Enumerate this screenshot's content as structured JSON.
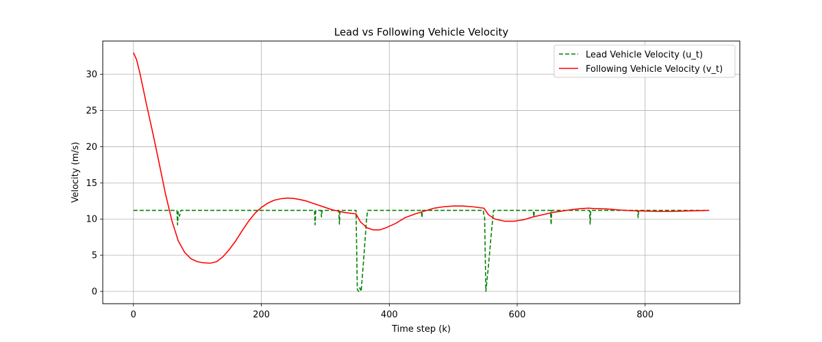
{
  "chart_data": {
    "type": "line",
    "title": "Lead vs Following Vehicle Velocity",
    "xlabel": "Time step (k)",
    "ylabel": "Velocity (m/s)",
    "xlim": [
      -48,
      948
    ],
    "ylim": [
      -1.7,
      34.6
    ],
    "xticks": [
      0,
      200,
      400,
      600,
      800
    ],
    "yticks": [
      0,
      5,
      10,
      15,
      20,
      25,
      30
    ],
    "grid": true,
    "legend_position": "top-right",
    "colors": {
      "lead": "#008000",
      "following": "#ff0000",
      "grid": "#b0b0b0"
    },
    "series": [
      {
        "name": "Lead Vehicle Velocity (u_t)",
        "style": "dashed",
        "color": "#008000",
        "points": [
          [
            0,
            11.2
          ],
          [
            68,
            11.2
          ],
          [
            69,
            9.2
          ],
          [
            70,
            11.0
          ],
          [
            72,
            10.4
          ],
          [
            74,
            11.2
          ],
          [
            283,
            11.2
          ],
          [
            284,
            9.2
          ],
          [
            285,
            11.2
          ],
          [
            293,
            11.2
          ],
          [
            294,
            10.3
          ],
          [
            295,
            11.2
          ],
          [
            321,
            11.2
          ],
          [
            322,
            9.3
          ],
          [
            323,
            11.2
          ],
          [
            348,
            11.2
          ],
          [
            350,
            0.3
          ],
          [
            352,
            0.0
          ],
          [
            354,
            0.5
          ],
          [
            356,
            0.0
          ],
          [
            360,
            4.5
          ],
          [
            364,
            9.5
          ],
          [
            366,
            11.2
          ],
          [
            450,
            11.2
          ],
          [
            451,
            10.2
          ],
          [
            452,
            11.2
          ],
          [
            547,
            11.2
          ],
          [
            548,
            10.4
          ],
          [
            549,
            10.3
          ],
          [
            551,
            0.0
          ],
          [
            555,
            3.5
          ],
          [
            560,
            8.5
          ],
          [
            563,
            11.2
          ],
          [
            625,
            11.2
          ],
          [
            626,
            10.3
          ],
          [
            627,
            11.2
          ],
          [
            652,
            11.2
          ],
          [
            653,
            9.2
          ],
          [
            654,
            11.2
          ],
          [
            713,
            11.2
          ],
          [
            714,
            9.3
          ],
          [
            715,
            11.2
          ],
          [
            788,
            11.2
          ],
          [
            789,
            10.2
          ],
          [
            790,
            11.2
          ],
          [
            900,
            11.2
          ]
        ]
      },
      {
        "name": "Following Vehicle Velocity (v_t)",
        "style": "solid",
        "color": "#ff0000",
        "points": [
          [
            0,
            33.0
          ],
          [
            5,
            32.0
          ],
          [
            10,
            30.2
          ],
          [
            20,
            26.0
          ],
          [
            30,
            22.0
          ],
          [
            40,
            17.8
          ],
          [
            50,
            13.5
          ],
          [
            60,
            9.8
          ],
          [
            70,
            7.0
          ],
          [
            80,
            5.4
          ],
          [
            90,
            4.5
          ],
          [
            100,
            4.1
          ],
          [
            110,
            3.95
          ],
          [
            120,
            3.9
          ],
          [
            130,
            4.1
          ],
          [
            140,
            4.8
          ],
          [
            150,
            5.8
          ],
          [
            160,
            7.0
          ],
          [
            170,
            8.4
          ],
          [
            180,
            9.7
          ],
          [
            190,
            10.8
          ],
          [
            200,
            11.6
          ],
          [
            210,
            12.2
          ],
          [
            220,
            12.6
          ],
          [
            230,
            12.8
          ],
          [
            240,
            12.9
          ],
          [
            250,
            12.85
          ],
          [
            260,
            12.7
          ],
          [
            270,
            12.5
          ],
          [
            280,
            12.2
          ],
          [
            290,
            11.9
          ],
          [
            300,
            11.6
          ],
          [
            310,
            11.3
          ],
          [
            320,
            11.1
          ],
          [
            330,
            10.9
          ],
          [
            340,
            10.8
          ],
          [
            348,
            10.7
          ],
          [
            355,
            9.6
          ],
          [
            365,
            8.8
          ],
          [
            375,
            8.5
          ],
          [
            385,
            8.5
          ],
          [
            395,
            8.8
          ],
          [
            410,
            9.4
          ],
          [
            425,
            10.2
          ],
          [
            440,
            10.7
          ],
          [
            455,
            11.1
          ],
          [
            470,
            11.5
          ],
          [
            485,
            11.7
          ],
          [
            500,
            11.8
          ],
          [
            515,
            11.8
          ],
          [
            530,
            11.7
          ],
          [
            548,
            11.5
          ],
          [
            555,
            10.6
          ],
          [
            565,
            10.0
          ],
          [
            580,
            9.7
          ],
          [
            595,
            9.7
          ],
          [
            610,
            9.9
          ],
          [
            625,
            10.3
          ],
          [
            640,
            10.6
          ],
          [
            655,
            10.9
          ],
          [
            670,
            11.1
          ],
          [
            685,
            11.3
          ],
          [
            700,
            11.45
          ],
          [
            712,
            11.5
          ],
          [
            720,
            11.45
          ],
          [
            740,
            11.4
          ],
          [
            760,
            11.25
          ],
          [
            780,
            11.15
          ],
          [
            800,
            11.1
          ],
          [
            820,
            11.05
          ],
          [
            840,
            11.05
          ],
          [
            860,
            11.1
          ],
          [
            880,
            11.15
          ],
          [
            900,
            11.2
          ]
        ]
      }
    ]
  }
}
